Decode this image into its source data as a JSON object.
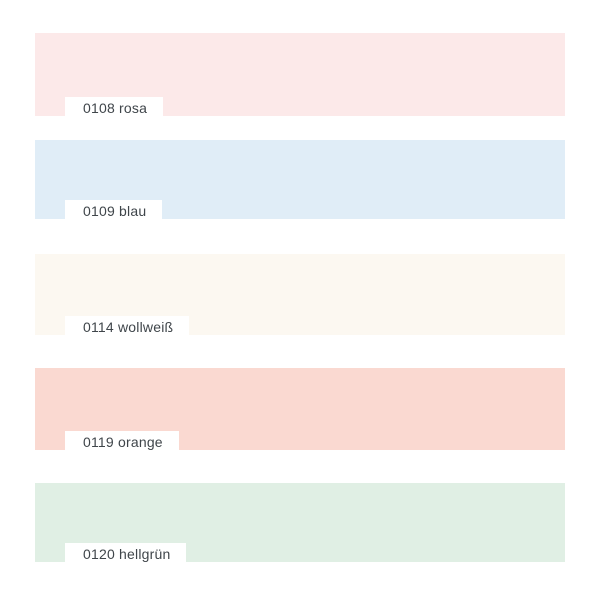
{
  "page": {
    "background": "#ffffff",
    "label_text_color": "#3f454a"
  },
  "swatches": {
    "items": [
      {
        "code": "0108",
        "name": "rosa",
        "label": "0108 rosa",
        "color": "#fce9e9"
      },
      {
        "code": "0109",
        "name": "blau",
        "label": "0109 blau",
        "color": "#e0edf7"
      },
      {
        "code": "0114",
        "name": "wollweiß",
        "label": "0114 wollweiß",
        "color": "#fcf8f1"
      },
      {
        "code": "0119",
        "name": "orange",
        "label": "0119 orange",
        "color": "#fad9d1"
      },
      {
        "code": "0120",
        "name": "hellgrün",
        "label": "0120 hellgrün",
        "color": "#e0efe4"
      }
    ]
  }
}
